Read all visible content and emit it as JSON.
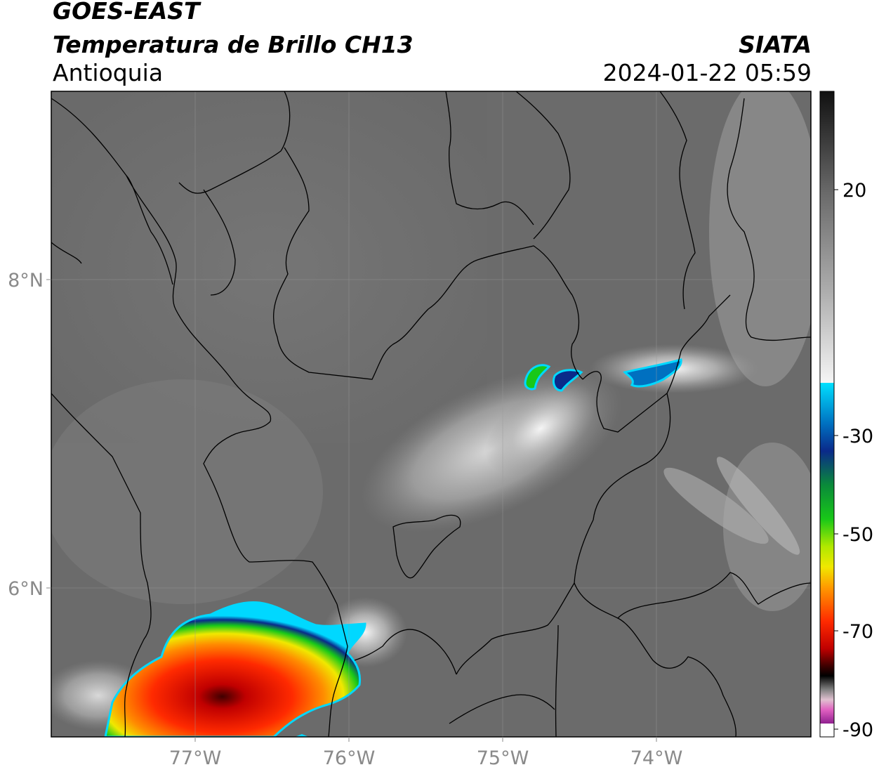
{
  "header": {
    "satellite": "GOES-EAST",
    "product": "Temperatura de Brillo CH13",
    "region": "Antioquia",
    "agency": "SIATA",
    "datetime": "2024-01-22 05:59"
  },
  "axes": {
    "lon_ticks": [
      "77°W",
      "76°W",
      "75°W",
      "74°W"
    ],
    "lat_ticks": [
      "8°N",
      "6°N"
    ]
  },
  "colorbar": {
    "tick_labels": [
      "20",
      "-30",
      "-50",
      "-70",
      "-90"
    ],
    "colors": {
      "warm_gray_top": "#151515",
      "mid_gray": "#8a8a8a",
      "white": "#f2f2f2",
      "cyan": "#00d8ff",
      "blue": "#0a2a8a",
      "green": "#18c818",
      "yellow": "#f0e800",
      "orange": "#ff8c00",
      "red": "#e81000",
      "dark_red": "#400000",
      "black": "#000000",
      "pink": "#e060c0",
      "purple": "#902090"
    }
  },
  "map": {
    "background_gray": "#6e6e6e",
    "boundary_color": "#000000",
    "gridline_color": "#9a9a9a"
  }
}
